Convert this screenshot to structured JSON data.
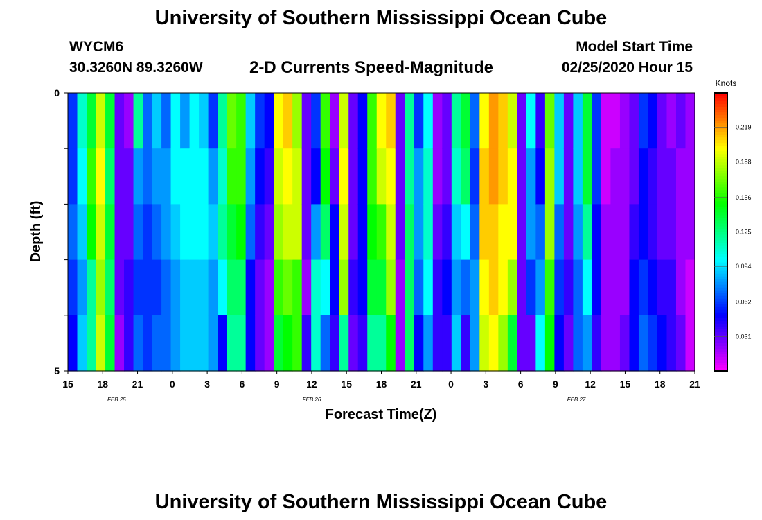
{
  "header": {
    "title": "University of Southern Mississippi Ocean Cube",
    "station": "WYCM6",
    "coordinates": "30.3260N 89.3260W",
    "chart_title": "2-D Currents Speed-Magnitude",
    "model_label": "Model Start Time",
    "model_time": "02/25/2020 Hour 15"
  },
  "footer": {
    "title": "University of Southern Mississippi Ocean Cube"
  },
  "chart_data": {
    "type": "heatmap",
    "title": "2-D Currents Speed-Magnitude",
    "xlabel": "Forecast Time(Z)",
    "ylabel": "Depth (ft)",
    "ylim": [
      0,
      5
    ],
    "y_ticks": [
      "0",
      "5"
    ],
    "x_tick_labels": [
      "15",
      "18",
      "21",
      "0",
      "3",
      "6",
      "9",
      "12",
      "15",
      "18",
      "21",
      "0",
      "3",
      "6",
      "9",
      "12",
      "15",
      "18",
      "21"
    ],
    "date_labels": [
      {
        "label": "FEB 25",
        "at_tick": 1.4
      },
      {
        "label": "FEB 26",
        "at_tick": 7
      },
      {
        "label": "FEB 27",
        "at_tick": 14.6
      }
    ],
    "colorbar": {
      "unit": "Knots",
      "min": 0.0,
      "max": 0.25,
      "tick_values": [
        "0.031",
        "0.062",
        "0.094",
        "0.125",
        "0.156",
        "0.188",
        "0.219"
      ]
    },
    "depth_layers": 5,
    "grid": false,
    "columns": [
      [
        0.06,
        0.06,
        0.07,
        0.06,
        0.05
      ],
      [
        0.11,
        0.1,
        0.09,
        0.08,
        0.09
      ],
      [
        0.14,
        0.16,
        0.15,
        0.12,
        0.12
      ],
      [
        0.19,
        0.2,
        0.19,
        0.18,
        0.19
      ],
      [
        0.14,
        0.13,
        0.14,
        0.13,
        0.14
      ],
      [
        0.03,
        0.03,
        0.03,
        0.03,
        0.02
      ],
      [
        0.02,
        0.03,
        0.03,
        0.04,
        0.04
      ],
      [
        0.12,
        0.08,
        0.07,
        0.06,
        0.07
      ],
      [
        0.07,
        0.07,
        0.06,
        0.06,
        0.06
      ],
      [
        0.09,
        0.08,
        0.07,
        0.06,
        0.07
      ],
      [
        0.07,
        0.08,
        0.08,
        0.07,
        0.07
      ],
      [
        0.1,
        0.1,
        0.09,
        0.08,
        0.08
      ],
      [
        0.08,
        0.1,
        0.1,
        0.09,
        0.09
      ],
      [
        0.1,
        0.1,
        0.1,
        0.09,
        0.09
      ],
      [
        0.09,
        0.1,
        0.1,
        0.09,
        0.09
      ],
      [
        0.06,
        0.08,
        0.09,
        0.08,
        0.08
      ],
      [
        0.12,
        0.11,
        0.12,
        0.1,
        0.05
      ],
      [
        0.17,
        0.16,
        0.14,
        0.13,
        0.12
      ],
      [
        0.16,
        0.16,
        0.15,
        0.13,
        0.12
      ],
      [
        0.09,
        0.08,
        0.07,
        0.05,
        0.05
      ],
      [
        0.06,
        0.05,
        0.04,
        0.03,
        0.03
      ],
      [
        0.05,
        0.04,
        0.03,
        0.02,
        0.02
      ],
      [
        0.2,
        0.19,
        0.18,
        0.16,
        0.14
      ],
      [
        0.21,
        0.2,
        0.19,
        0.17,
        0.15
      ],
      [
        0.18,
        0.19,
        0.19,
        0.16,
        0.16
      ],
      [
        0.03,
        0.03,
        0.03,
        0.02,
        0.04
      ],
      [
        0.06,
        0.05,
        0.08,
        0.11,
        0.11
      ],
      [
        0.16,
        0.15,
        0.13,
        0.1,
        0.07
      ],
      [
        0.02,
        0.03,
        0.05,
        0.05,
        0.04
      ],
      [
        0.19,
        0.2,
        0.19,
        0.18,
        0.12
      ],
      [
        0.03,
        0.03,
        0.03,
        0.04,
        0.03
      ],
      [
        0.05,
        0.05,
        0.05,
        0.05,
        0.04
      ],
      [
        0.16,
        0.16,
        0.15,
        0.14,
        0.12
      ],
      [
        0.2,
        0.19,
        0.16,
        0.14,
        0.12
      ],
      [
        0.21,
        0.2,
        0.19,
        0.18,
        0.15
      ],
      [
        0.03,
        0.03,
        0.03,
        0.02,
        0.02
      ],
      [
        0.12,
        0.12,
        0.13,
        0.13,
        0.13
      ],
      [
        0.06,
        0.08,
        0.08,
        0.07,
        0.05
      ],
      [
        0.1,
        0.11,
        0.11,
        0.1,
        0.08
      ],
      [
        0.02,
        0.02,
        0.03,
        0.04,
        0.04
      ],
      [
        0.03,
        0.03,
        0.04,
        0.05,
        0.04
      ],
      [
        0.12,
        0.11,
        0.09,
        0.08,
        0.09
      ],
      [
        0.14,
        0.13,
        0.1,
        0.07,
        0.04
      ],
      [
        0.07,
        0.06,
        0.07,
        0.08,
        0.08
      ],
      [
        0.2,
        0.21,
        0.21,
        0.2,
        0.19
      ],
      [
        0.22,
        0.22,
        0.21,
        0.21,
        0.2
      ],
      [
        0.21,
        0.21,
        0.2,
        0.2,
        0.18
      ],
      [
        0.19,
        0.2,
        0.2,
        0.18,
        0.14
      ],
      [
        0.03,
        0.03,
        0.03,
        0.03,
        0.03
      ],
      [
        0.1,
        0.08,
        0.08,
        0.06,
        0.03
      ],
      [
        0.04,
        0.05,
        0.07,
        0.08,
        0.1
      ],
      [
        0.17,
        0.18,
        0.18,
        0.16,
        0.15
      ],
      [
        0.09,
        0.09,
        0.07,
        0.06,
        0.05
      ],
      [
        0.03,
        0.03,
        0.03,
        0.04,
        0.03
      ],
      [
        0.09,
        0.09,
        0.08,
        0.07,
        0.07
      ],
      [
        0.14,
        0.14,
        0.12,
        0.1,
        0.08
      ],
      [
        0.06,
        0.06,
        0.05,
        0.05,
        0.04
      ],
      [
        0.01,
        0.01,
        0.02,
        0.02,
        0.02
      ],
      [
        0.01,
        0.02,
        0.02,
        0.02,
        0.02
      ],
      [
        0.02,
        0.02,
        0.02,
        0.02,
        0.03
      ],
      [
        0.03,
        0.03,
        0.04,
        0.05,
        0.05
      ],
      [
        0.06,
        0.05,
        0.05,
        0.06,
        0.07
      ],
      [
        0.05,
        0.04,
        0.04,
        0.05,
        0.06
      ],
      [
        0.03,
        0.03,
        0.03,
        0.04,
        0.05
      ],
      [
        0.02,
        0.03,
        0.03,
        0.04,
        0.04
      ],
      [
        0.03,
        0.02,
        0.02,
        0.02,
        0.03
      ],
      [
        0.02,
        0.02,
        0.02,
        0.01,
        0.01
      ]
    ]
  }
}
